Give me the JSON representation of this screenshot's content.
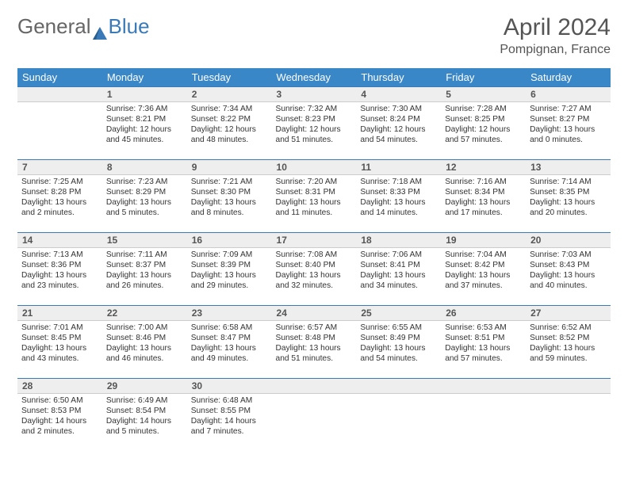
{
  "logo": {
    "text1": "General",
    "text2": "Blue",
    "icon_color": "#3a7ab8"
  },
  "title": "April 2024",
  "location": "Pompignan, France",
  "colors": {
    "header_bg": "#3a87c8",
    "header_text": "#ffffff",
    "daynum_bg": "#eeeeee",
    "rule": "#3a7ab8",
    "text": "#333333"
  },
  "day_headers": [
    "Sunday",
    "Monday",
    "Tuesday",
    "Wednesday",
    "Thursday",
    "Friday",
    "Saturday"
  ],
  "weeks": [
    [
      null,
      {
        "n": "1",
        "sunrise": "7:36 AM",
        "sunset": "8:21 PM",
        "daylight": "12 hours and 45 minutes."
      },
      {
        "n": "2",
        "sunrise": "7:34 AM",
        "sunset": "8:22 PM",
        "daylight": "12 hours and 48 minutes."
      },
      {
        "n": "3",
        "sunrise": "7:32 AM",
        "sunset": "8:23 PM",
        "daylight": "12 hours and 51 minutes."
      },
      {
        "n": "4",
        "sunrise": "7:30 AM",
        "sunset": "8:24 PM",
        "daylight": "12 hours and 54 minutes."
      },
      {
        "n": "5",
        "sunrise": "7:28 AM",
        "sunset": "8:25 PM",
        "daylight": "12 hours and 57 minutes."
      },
      {
        "n": "6",
        "sunrise": "7:27 AM",
        "sunset": "8:27 PM",
        "daylight": "13 hours and 0 minutes."
      }
    ],
    [
      {
        "n": "7",
        "sunrise": "7:25 AM",
        "sunset": "8:28 PM",
        "daylight": "13 hours and 2 minutes."
      },
      {
        "n": "8",
        "sunrise": "7:23 AM",
        "sunset": "8:29 PM",
        "daylight": "13 hours and 5 minutes."
      },
      {
        "n": "9",
        "sunrise": "7:21 AM",
        "sunset": "8:30 PM",
        "daylight": "13 hours and 8 minutes."
      },
      {
        "n": "10",
        "sunrise": "7:20 AM",
        "sunset": "8:31 PM",
        "daylight": "13 hours and 11 minutes."
      },
      {
        "n": "11",
        "sunrise": "7:18 AM",
        "sunset": "8:33 PM",
        "daylight": "13 hours and 14 minutes."
      },
      {
        "n": "12",
        "sunrise": "7:16 AM",
        "sunset": "8:34 PM",
        "daylight": "13 hours and 17 minutes."
      },
      {
        "n": "13",
        "sunrise": "7:14 AM",
        "sunset": "8:35 PM",
        "daylight": "13 hours and 20 minutes."
      }
    ],
    [
      {
        "n": "14",
        "sunrise": "7:13 AM",
        "sunset": "8:36 PM",
        "daylight": "13 hours and 23 minutes."
      },
      {
        "n": "15",
        "sunrise": "7:11 AM",
        "sunset": "8:37 PM",
        "daylight": "13 hours and 26 minutes."
      },
      {
        "n": "16",
        "sunrise": "7:09 AM",
        "sunset": "8:39 PM",
        "daylight": "13 hours and 29 minutes."
      },
      {
        "n": "17",
        "sunrise": "7:08 AM",
        "sunset": "8:40 PM",
        "daylight": "13 hours and 32 minutes."
      },
      {
        "n": "18",
        "sunrise": "7:06 AM",
        "sunset": "8:41 PM",
        "daylight": "13 hours and 34 minutes."
      },
      {
        "n": "19",
        "sunrise": "7:04 AM",
        "sunset": "8:42 PM",
        "daylight": "13 hours and 37 minutes."
      },
      {
        "n": "20",
        "sunrise": "7:03 AM",
        "sunset": "8:43 PM",
        "daylight": "13 hours and 40 minutes."
      }
    ],
    [
      {
        "n": "21",
        "sunrise": "7:01 AM",
        "sunset": "8:45 PM",
        "daylight": "13 hours and 43 minutes."
      },
      {
        "n": "22",
        "sunrise": "7:00 AM",
        "sunset": "8:46 PM",
        "daylight": "13 hours and 46 minutes."
      },
      {
        "n": "23",
        "sunrise": "6:58 AM",
        "sunset": "8:47 PM",
        "daylight": "13 hours and 49 minutes."
      },
      {
        "n": "24",
        "sunrise": "6:57 AM",
        "sunset": "8:48 PM",
        "daylight": "13 hours and 51 minutes."
      },
      {
        "n": "25",
        "sunrise": "6:55 AM",
        "sunset": "8:49 PM",
        "daylight": "13 hours and 54 minutes."
      },
      {
        "n": "26",
        "sunrise": "6:53 AM",
        "sunset": "8:51 PM",
        "daylight": "13 hours and 57 minutes."
      },
      {
        "n": "27",
        "sunrise": "6:52 AM",
        "sunset": "8:52 PM",
        "daylight": "13 hours and 59 minutes."
      }
    ],
    [
      {
        "n": "28",
        "sunrise": "6:50 AM",
        "sunset": "8:53 PM",
        "daylight": "14 hours and 2 minutes."
      },
      {
        "n": "29",
        "sunrise": "6:49 AM",
        "sunset": "8:54 PM",
        "daylight": "14 hours and 5 minutes."
      },
      {
        "n": "30",
        "sunrise": "6:48 AM",
        "sunset": "8:55 PM",
        "daylight": "14 hours and 7 minutes."
      },
      null,
      null,
      null,
      null
    ]
  ],
  "labels": {
    "sunrise": "Sunrise:",
    "sunset": "Sunset:",
    "daylight": "Daylight:"
  }
}
